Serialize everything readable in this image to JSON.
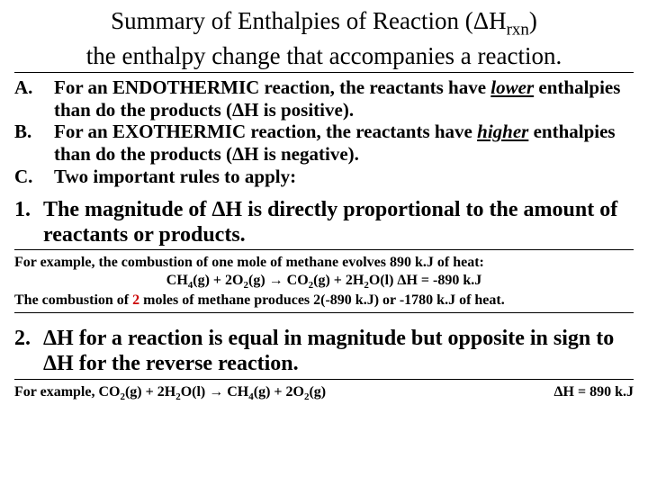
{
  "title_part1": "Summary of Enthalpies of Reaction (",
  "title_delta": "Δ",
  "title_H": "H",
  "title_rxn": "rxn",
  "title_part2": ")",
  "subtitle": "the enthalpy change that accompanies a reaction.",
  "abc": {
    "A": {
      "label": "A.",
      "pre": "For an ENDOTHERMIC reaction, the reactants have ",
      "emph": "lower",
      "post1": " enthalpies than do the products (",
      "delta": "Δ",
      "post2": "H is positive)."
    },
    "B": {
      "label": "B.",
      "pre": "For an EXOTHERMIC reaction, the reactants have ",
      "emph": "higher",
      "post1": " enthalpies than do the products (",
      "delta": "Δ",
      "post2": "H is negative)."
    },
    "C": {
      "label": "C.",
      "text": "Two important rules to apply:"
    }
  },
  "rule1": {
    "num": "1.",
    "pre": "The magnitude of ",
    "delta": "Δ",
    "mid": "H is directly proportional to the amount of reactants or products."
  },
  "ex1": {
    "line1": "For example, the combustion of one mole of methane evolves 890 k.J of heat:",
    "eq_pre": "CH",
    "s4": "4",
    "g": "(g) + 2O",
    "s2a": "2",
    "g2": "(g) ",
    "arrow": "→",
    "co": " CO",
    "s2b": "2",
    "g3": "(g) + 2H",
    "s2c": "2",
    "ol": "O(l) ",
    "delta": "Δ",
    "dh": "H = -890 k.J",
    "line3a": "The combustion of ",
    "two": "2",
    "line3b": " moles of methane produces 2(-890 k.J) or -1780 k.J of heat."
  },
  "rule2": {
    "num": "2.",
    "delta1": "Δ",
    "t1": "H for a reaction is equal in magnitude but opposite in sign to ",
    "delta2": "Δ",
    "t2": "H for the reverse reaction."
  },
  "ex2": {
    "pre": "For example, CO",
    "s2a": "2",
    "g1": "(g)  +  2H",
    "s2b": "2",
    "ol": "O(l) ",
    "arrow": "→",
    "ch": " CH",
    "s4": "4",
    "g2": "(g)  +  2O",
    "s2c": "2",
    "g3": "(g)",
    "delta": "Δ",
    "dh": "H = 890 k.J"
  }
}
